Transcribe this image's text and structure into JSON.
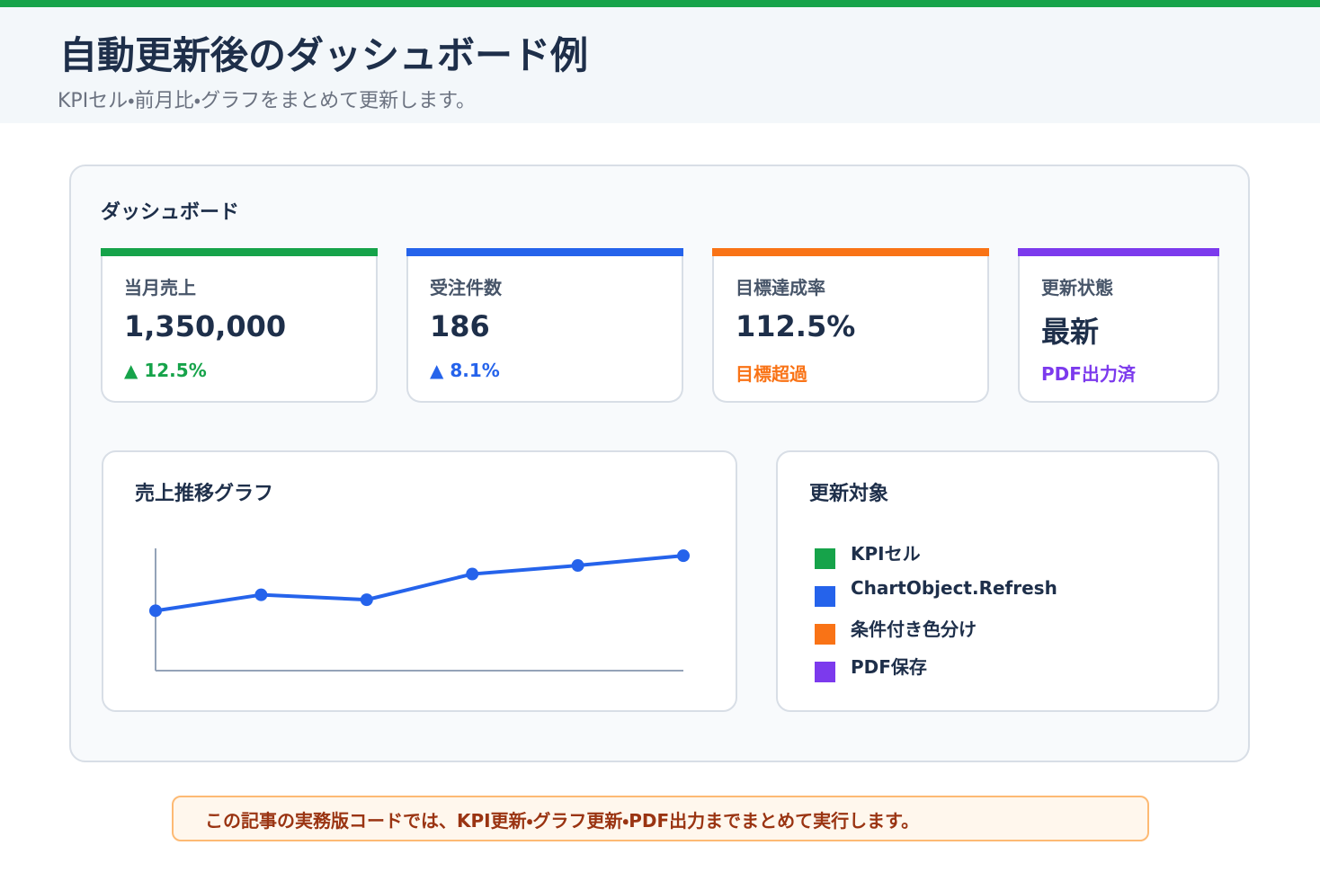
{
  "header": {
    "title": "自動更新後のダッシュボード例",
    "subtitle": "KPIセル・前月比・グラフをまとめて更新します。"
  },
  "dashboard": {
    "title": "ダッシュボード",
    "kpis": [
      {
        "label": "当月売上",
        "value": "1,350,000",
        "delta": "▲ 12.5%",
        "color": "#16a34a"
      },
      {
        "label": "受注件数",
        "value": "186",
        "delta": "▲ 8.1%",
        "color": "#2563eb"
      },
      {
        "label": "目標達成率",
        "value": "112.5%",
        "delta": "目標超過",
        "color": "#f97316"
      },
      {
        "label": "更新状態",
        "value": "最新",
        "delta": "PDF出力済",
        "color": "#7c3aed"
      }
    ]
  },
  "chart_data": {
    "type": "line",
    "title": "売上推移グラフ",
    "categories": [
      null,
      null,
      null,
      null,
      null,
      null
    ],
    "values": [
      49,
      62,
      58,
      79,
      86,
      94
    ],
    "color": "#2563eb",
    "ylim": [
      0,
      100
    ]
  },
  "legend": {
    "title": "更新対象",
    "items": [
      {
        "label": "KPIセル",
        "color": "#16a34a"
      },
      {
        "label": "ChartObject.Refresh",
        "color": "#2563eb"
      },
      {
        "label": "条件付き色分け",
        "color": "#f97316"
      },
      {
        "label": "PDF保存",
        "color": "#7c3aed"
      }
    ]
  },
  "footer": {
    "note": "この記事の実務版コードでは、KPI更新・グラフ更新・PDF出力までまとめて実行します。"
  }
}
